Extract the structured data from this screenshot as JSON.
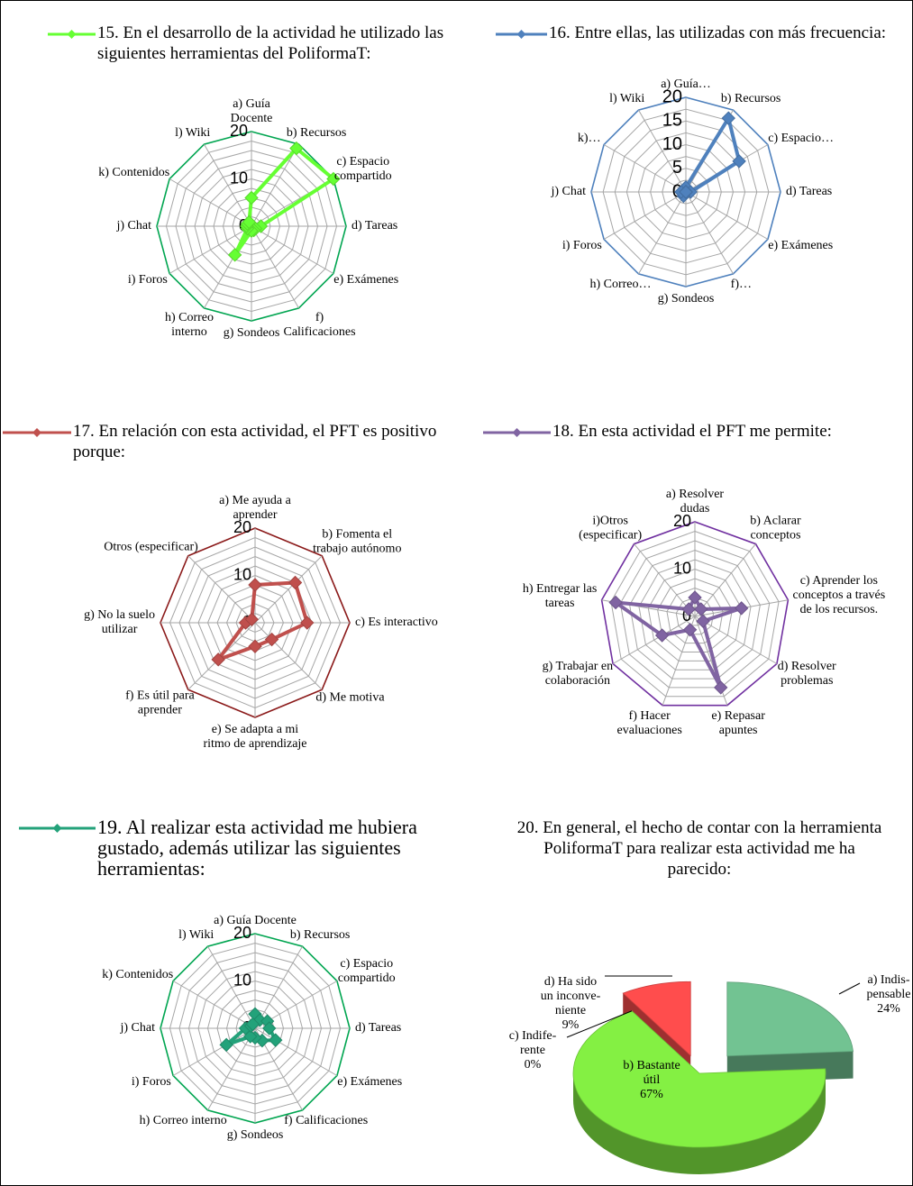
{
  "chart_data": [
    {
      "type": "radar",
      "categories": [
        "a)  Guía\nDocente",
        "b)  Recursos",
        "c)  Espacio\ncompartido",
        "d)  Tareas",
        "e)  Exámenes",
        "f)\nCalificaciones",
        "g)  Sondeos",
        "h)  Correo\ninterno",
        "i)  Foros",
        "j)  Chat",
        "k)  Contenidos",
        "l) Wiki"
      ],
      "series": [
        {
          "name": "15. En el desarrollo de la actividad he utilizado las siguientes herramientas del PoliformaT:",
          "color": "#66ff33",
          "values": [
            6,
            19,
            20,
            2,
            1,
            1,
            1,
            7,
            1,
            1,
            1,
            1
          ]
        }
      ],
      "ylim": [
        0,
        20
      ],
      "yticks": [
        0,
        10,
        20
      ],
      "grid_color": "#00a550"
    },
    {
      "type": "radar",
      "categories": [
        "a)  Guía…",
        "b)  Recursos",
        "c)  Espacio…",
        "d)  Tareas",
        "e)  Exámenes",
        "f)…",
        "g)  Sondeos",
        "h)  Correo…",
        "i)  Foros",
        "j)  Chat",
        "k)…",
        "l) Wiki"
      ],
      "series": [
        {
          "name": "16. Entre ellas, las utilizadas con más frecuencia:",
          "color": "#4f81bd",
          "values": [
            1,
            18,
            13,
            1,
            0,
            0,
            0,
            1,
            0,
            1,
            0,
            0
          ]
        }
      ],
      "ylim": [
        0,
        20
      ],
      "yticks": [
        0,
        5,
        10,
        15,
        20
      ],
      "grid_color": "#4f81bd"
    },
    {
      "type": "radar",
      "categories": [
        "a)  Me ayuda a\naprender",
        "b)  Fomenta el\ntrabajo autónomo",
        "c)  Es interactivo",
        "d)  Me motiva",
        "e)  Se adapta a mi\nritmo de aprendizaje",
        "f)  Es útil para\naprender",
        "g)  No la suelo\nutilizar",
        "Otros (especificar)"
      ],
      "series": [
        {
          "name": "17. En relación con esta actividad, el PFT es positivo porque:",
          "color": "#c0504d",
          "values": [
            8,
            12,
            11,
            5,
            5,
            11,
            2,
            1
          ]
        }
      ],
      "ylim": [
        0,
        20
      ],
      "yticks": [
        0,
        10,
        20
      ],
      "grid_color": "#8b1a1a"
    },
    {
      "type": "radar",
      "categories": [
        "a)  Resolver\ndudas",
        "b)  Aclarar\nconceptos",
        "c)  Aprender los\nconceptos a través\nde los recursos.",
        "d)  Resolver\nproblemas",
        "e)  Repasar\napuntes",
        "f)  Hacer\nevaluaciones",
        "g)  Trabajar en\ncolaboración",
        "h)  Entregar las\ntareas",
        "i)Otros\n(especificar)"
      ],
      "series": [
        {
          "name": "18. En esta actividad el PFT me permite:",
          "color": "#8064a2",
          "values": [
            4,
            2,
            10,
            2,
            16,
            3,
            8,
            17,
            2
          ]
        }
      ],
      "ylim": [
        0,
        20
      ],
      "yticks": [
        0,
        10,
        20
      ],
      "grid_color": "#7030a0"
    },
    {
      "type": "radar",
      "categories": [
        "a)  Guía Docente",
        "b)  Recursos",
        "c)  Espacio\ncompartido",
        "d)  Tareas",
        "e)  Exámenes",
        "f)  Calificaciones",
        "g)  Sondeos",
        "h)  Correo interno",
        "i)  Foros",
        "j)  Chat",
        "k)  Contenidos",
        "l) Wiki"
      ],
      "series": [
        {
          "name": "19. Al realizar esta actividad me hubiera gustado, además utilizar las siguientes herramientas:",
          "color": "#23a27a",
          "values": [
            3,
            2,
            3,
            3,
            5,
            3,
            2,
            2,
            7,
            2,
            1,
            1
          ]
        }
      ],
      "ylim": [
        0,
        20
      ],
      "yticks": [
        0,
        10,
        20
      ],
      "grid_color": "#00a550"
    },
    {
      "type": "pie",
      "title": "20. En general, el hecho de contar con la herramienta PoliformaT para realizar esta actividad me ha parecido:",
      "categories": [
        "a) Indis-\npensable",
        "b) Bastante\nútil",
        "c) Indife-\nrente",
        "d) Ha sido\nun inconve-\nniente"
      ],
      "values": [
        24,
        67,
        0,
        9
      ],
      "value_labels": [
        "24%",
        "67%",
        "0%",
        "9%"
      ],
      "colors": [
        "#72c392",
        "#84f043",
        "#c8a040",
        "#ff4d4d"
      ]
    }
  ]
}
